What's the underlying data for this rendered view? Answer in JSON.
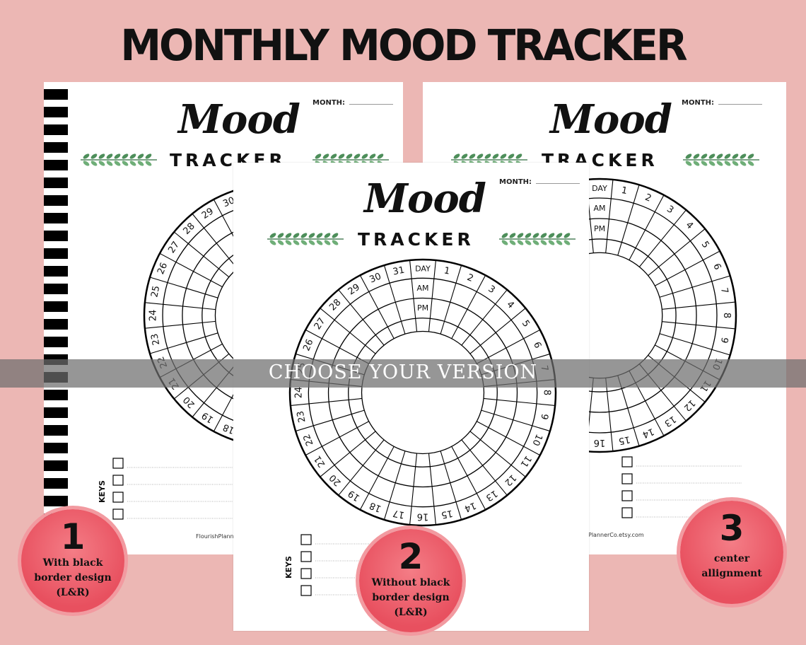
{
  "headline": "MONTHLY MOOD TRACKER",
  "banner": "CHOOSE YOUR VERSION",
  "sheet": {
    "month_label": "MONTH:",
    "title_script": "Mood",
    "title_caps": "TRACKER",
    "ring_header": "DAY",
    "ring_am": "AM",
    "ring_pm": "PM",
    "days": [
      "1",
      "2",
      "3",
      "4",
      "5",
      "6",
      "7",
      "8",
      "9",
      "10",
      "11",
      "12",
      "13",
      "14",
      "15",
      "16",
      "17",
      "18",
      "19",
      "20",
      "21",
      "22",
      "23",
      "24",
      "25",
      "26",
      "27",
      "28",
      "29",
      "30",
      "31"
    ],
    "keys_label": "KEYS",
    "footer_1": "FlourishPlann",
    "footer_3": "PlannerCo.etsy.com"
  },
  "versions": [
    {
      "number": "1",
      "caption": [
        "With black",
        "border design",
        "(L&R)"
      ]
    },
    {
      "number": "2",
      "caption": [
        "Without black",
        "border design",
        "(L&R)"
      ]
    },
    {
      "number": "3",
      "caption": [
        "center",
        "allignment"
      ]
    }
  ],
  "colors": {
    "background": "#ecb7b4",
    "badge": "#e8505f",
    "leaf": "#4e8f5b"
  }
}
